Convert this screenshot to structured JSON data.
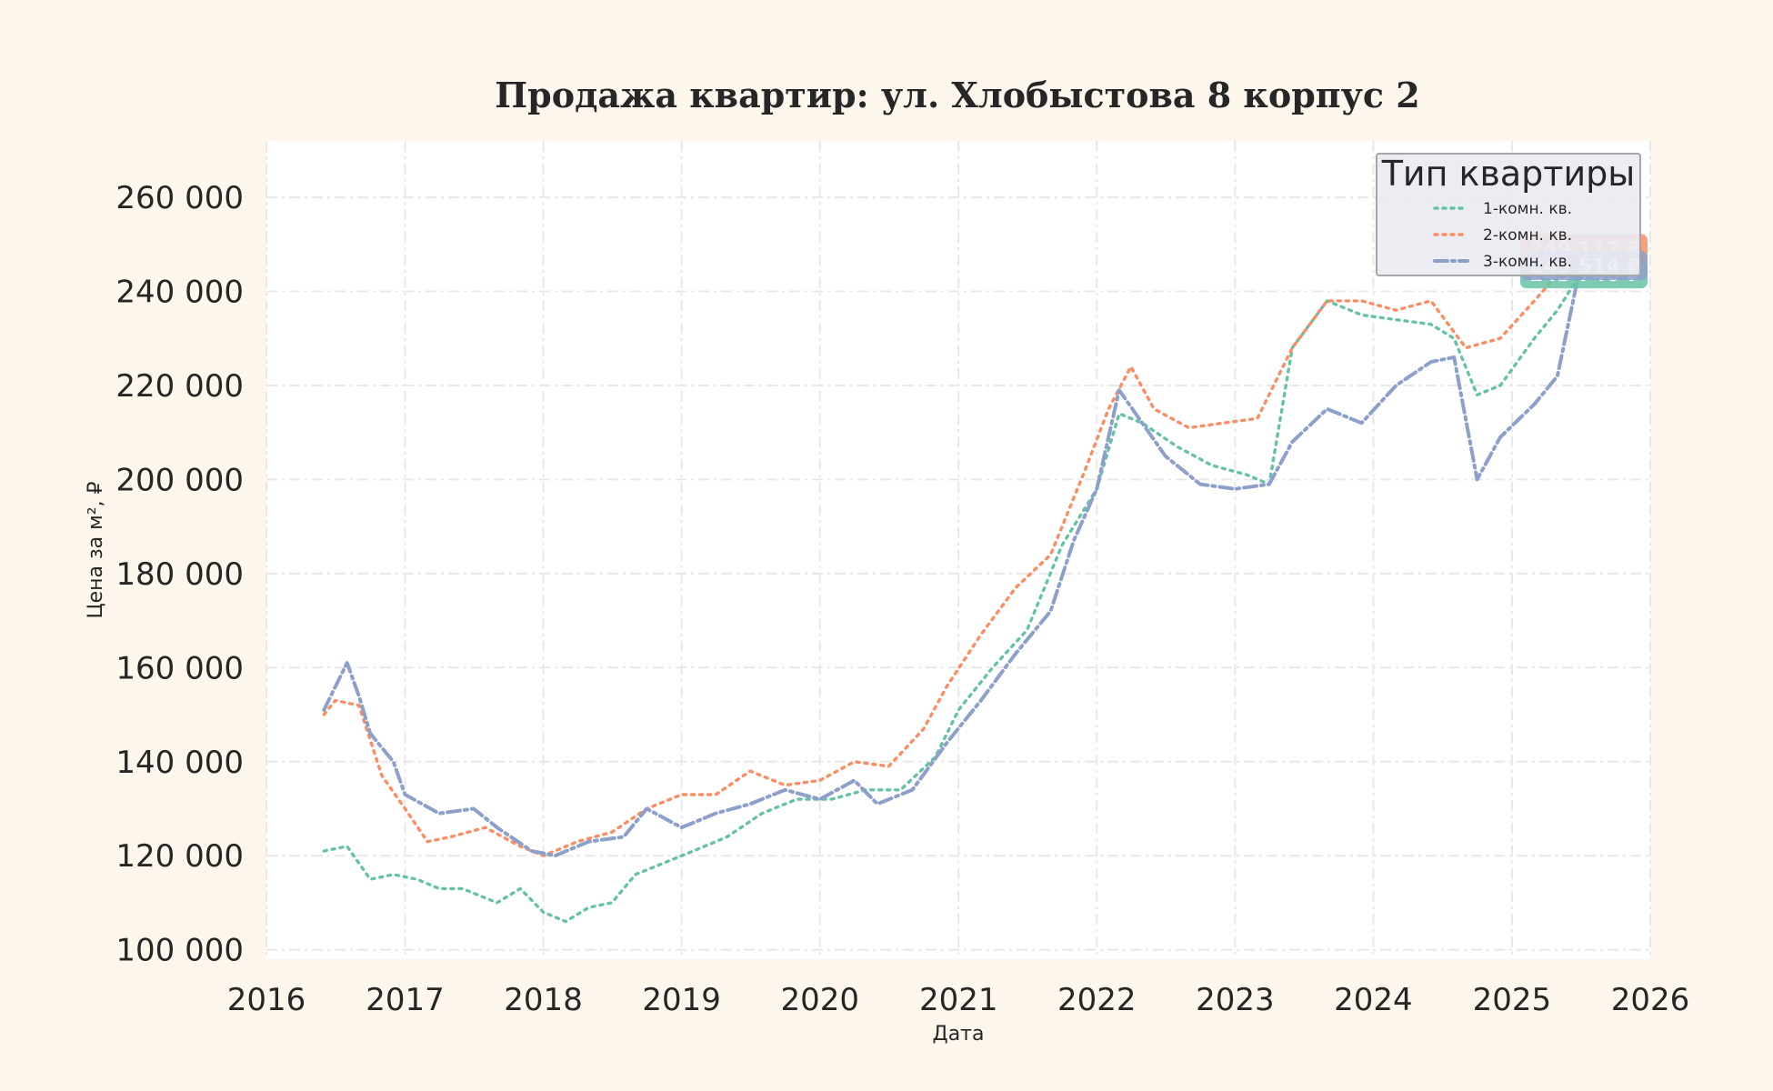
{
  "chart_data": {
    "type": "line",
    "title": "Продажа квартир: ул. Хлобыстова 8 корпус 2",
    "xlabel": "Дата",
    "ylabel": "Цена за м², ₽",
    "xlim": [
      "2016-01-01",
      "2026-01-01"
    ],
    "ylim": [
      98000,
      272000
    ],
    "x_ticks": [
      "2016",
      "2017",
      "2018",
      "2019",
      "2020",
      "2021",
      "2022",
      "2023",
      "2024",
      "2025",
      "2026"
    ],
    "y_ticks": [
      100000,
      120000,
      140000,
      160000,
      180000,
      200000,
      220000,
      240000,
      260000
    ],
    "y_tick_labels": [
      "100 000",
      "120 000",
      "140 000",
      "160 000",
      "180 000",
      "200 000",
      "220 000",
      "240 000",
      "260 000"
    ],
    "grid": true,
    "legend": {
      "title": "Тип квартиры",
      "position": "top-right"
    },
    "series": [
      {
        "name": "1-комн. кв.",
        "color": "#66c2a5",
        "style": "dotted",
        "last_label": "243 746 ₽",
        "points": [
          [
            "2016-06-01",
            121000
          ],
          [
            "2016-08-01",
            122000
          ],
          [
            "2016-10-01",
            115000
          ],
          [
            "2016-12-01",
            116000
          ],
          [
            "2017-02-01",
            115000
          ],
          [
            "2017-04-01",
            113000
          ],
          [
            "2017-06-01",
            113000
          ],
          [
            "2017-09-01",
            110000
          ],
          [
            "2017-11-01",
            113000
          ],
          [
            "2018-01-01",
            108000
          ],
          [
            "2018-03-01",
            106000
          ],
          [
            "2018-05-01",
            109000
          ],
          [
            "2018-07-01",
            110000
          ],
          [
            "2018-09-01",
            116000
          ],
          [
            "2018-11-01",
            118000
          ],
          [
            "2019-02-01",
            121000
          ],
          [
            "2019-05-01",
            124000
          ],
          [
            "2019-08-01",
            129000
          ],
          [
            "2019-11-01",
            132000
          ],
          [
            "2020-02-01",
            132000
          ],
          [
            "2020-05-01",
            134000
          ],
          [
            "2020-08-01",
            134000
          ],
          [
            "2020-11-01",
            141000
          ],
          [
            "2021-01-01",
            151000
          ],
          [
            "2021-04-01",
            160000
          ],
          [
            "2021-07-01",
            168000
          ],
          [
            "2021-10-01",
            186000
          ],
          [
            "2022-01-01",
            198000
          ],
          [
            "2022-03-01",
            214000
          ],
          [
            "2022-05-01",
            212000
          ],
          [
            "2022-08-01",
            207000
          ],
          [
            "2022-11-01",
            203000
          ],
          [
            "2023-02-01",
            201000
          ],
          [
            "2023-04-01",
            199000
          ],
          [
            "2023-06-01",
            228000
          ],
          [
            "2023-09-01",
            238000
          ],
          [
            "2023-12-01",
            235000
          ],
          [
            "2024-03-01",
            234000
          ],
          [
            "2024-06-01",
            233000
          ],
          [
            "2024-08-01",
            230000
          ],
          [
            "2024-10-01",
            218000
          ],
          [
            "2024-12-01",
            220000
          ],
          [
            "2025-03-01",
            230000
          ],
          [
            "2025-05-01",
            236000
          ],
          [
            "2025-07-01",
            243746
          ]
        ]
      },
      {
        "name": "2-комн. кв.",
        "color": "#fc8d62",
        "style": "dotted",
        "last_label": "249 117 ₽",
        "points": [
          [
            "2016-06-01",
            150000
          ],
          [
            "2016-07-01",
            153000
          ],
          [
            "2016-09-01",
            152000
          ],
          [
            "2016-11-01",
            137000
          ],
          [
            "2017-01-01",
            130000
          ],
          [
            "2017-03-01",
            123000
          ],
          [
            "2017-05-01",
            124000
          ],
          [
            "2017-08-01",
            126000
          ],
          [
            "2017-11-01",
            122000
          ],
          [
            "2018-01-01",
            120000
          ],
          [
            "2018-04-01",
            123000
          ],
          [
            "2018-07-01",
            125000
          ],
          [
            "2018-10-01",
            130000
          ],
          [
            "2019-01-01",
            133000
          ],
          [
            "2019-04-01",
            133000
          ],
          [
            "2019-07-01",
            138000
          ],
          [
            "2019-10-01",
            135000
          ],
          [
            "2020-01-01",
            136000
          ],
          [
            "2020-04-01",
            140000
          ],
          [
            "2020-07-01",
            139000
          ],
          [
            "2020-10-01",
            147000
          ],
          [
            "2020-12-01",
            156000
          ],
          [
            "2021-03-01",
            167000
          ],
          [
            "2021-06-01",
            177000
          ],
          [
            "2021-09-01",
            184000
          ],
          [
            "2021-12-01",
            202000
          ],
          [
            "2022-02-01",
            215000
          ],
          [
            "2022-04-01",
            224000
          ],
          [
            "2022-06-01",
            215000
          ],
          [
            "2022-09-01",
            211000
          ],
          [
            "2022-12-01",
            212000
          ],
          [
            "2023-03-01",
            213000
          ],
          [
            "2023-06-01",
            228000
          ],
          [
            "2023-09-01",
            238000
          ],
          [
            "2023-12-01",
            238000
          ],
          [
            "2024-03-01",
            236000
          ],
          [
            "2024-06-01",
            238000
          ],
          [
            "2024-09-01",
            228000
          ],
          [
            "2024-12-01",
            230000
          ],
          [
            "2025-03-01",
            238000
          ],
          [
            "2025-07-01",
            249117
          ]
        ]
      },
      {
        "name": "3-комн. кв.",
        "color": "#8da0cb",
        "style": "dashdot",
        "last_label": "245 514 ₽",
        "points": [
          [
            "2016-06-01",
            151000
          ],
          [
            "2016-08-01",
            161000
          ],
          [
            "2016-09-01",
            154000
          ],
          [
            "2016-10-01",
            146000
          ],
          [
            "2016-12-01",
            140000
          ],
          [
            "2017-01-01",
            133000
          ],
          [
            "2017-04-01",
            129000
          ],
          [
            "2017-07-01",
            130000
          ],
          [
            "2017-09-01",
            126000
          ],
          [
            "2017-12-01",
            121000
          ],
          [
            "2018-02-01",
            120000
          ],
          [
            "2018-05-01",
            123000
          ],
          [
            "2018-08-01",
            124000
          ],
          [
            "2018-10-01",
            130000
          ],
          [
            "2019-01-01",
            126000
          ],
          [
            "2019-04-01",
            129000
          ],
          [
            "2019-07-01",
            131000
          ],
          [
            "2019-10-01",
            134000
          ],
          [
            "2020-01-01",
            132000
          ],
          [
            "2020-04-01",
            136000
          ],
          [
            "2020-06-01",
            131000
          ],
          [
            "2020-09-01",
            134000
          ],
          [
            "2020-12-01",
            144000
          ],
          [
            "2021-03-01",
            153000
          ],
          [
            "2021-06-01",
            163000
          ],
          [
            "2021-09-01",
            172000
          ],
          [
            "2021-11-01",
            187000
          ],
          [
            "2022-01-01",
            198000
          ],
          [
            "2022-03-01",
            219000
          ],
          [
            "2022-05-01",
            212000
          ],
          [
            "2022-07-01",
            205000
          ],
          [
            "2022-10-01",
            199000
          ],
          [
            "2023-01-01",
            198000
          ],
          [
            "2023-04-01",
            199000
          ],
          [
            "2023-06-01",
            208000
          ],
          [
            "2023-09-01",
            215000
          ],
          [
            "2023-12-01",
            212000
          ],
          [
            "2024-03-01",
            220000
          ],
          [
            "2024-06-01",
            225000
          ],
          [
            "2024-08-01",
            226000
          ],
          [
            "2024-10-01",
            200000
          ],
          [
            "2024-12-01",
            209000
          ],
          [
            "2025-03-01",
            216000
          ],
          [
            "2025-05-01",
            222000
          ],
          [
            "2025-07-01",
            245514
          ]
        ]
      }
    ]
  }
}
